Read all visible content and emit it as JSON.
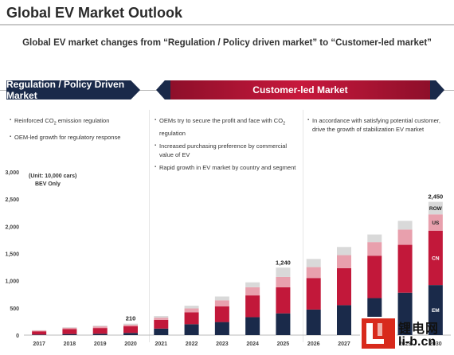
{
  "page": {
    "title": "Global EV Market Outlook",
    "subtitle": "Global EV market changes from “Regulation / Policy driven market” to “Customer-led market”"
  },
  "phases": {
    "left_banner": "Regulation / Policy Driven Market",
    "right_banner": "Customer-led Market"
  },
  "bullets": {
    "left": [
      "Reinforced CO",
      "emission regulation",
      "OEM-led growth for regulatory response"
    ],
    "middle": [
      "OEMs try to secure the profit and face with CO",
      " regulation",
      "Increased purchasing preference by commercial value of EV",
      "Rapid growth in EV market by country and segment"
    ],
    "right": [
      "In accordance with satisfying potential customer, drive the growth of stabilization EV market"
    ]
  },
  "unit_note": [
    "(Unit: 10,000 cars)",
    "BEV Only"
  ],
  "logo": {
    "line1": "锂电网",
    "line2": "li-b.cn"
  },
  "colors": {
    "navy": "#1a2a4a",
    "crimson": "#c2183a",
    "pink": "#e8a0ad",
    "light_pink": "#f2c9d1",
    "grey": "#d9d9d9"
  },
  "chart_data": {
    "type": "bar",
    "stacked": true,
    "categories": [
      "2017",
      "2018",
      "2019",
      "2020",
      "2021",
      "2022",
      "2023",
      "2024",
      "2025",
      "2026",
      "2027",
      "2028",
      "2029",
      "2030"
    ],
    "ylim": [
      0,
      3000
    ],
    "yticks": [
      "0",
      "500",
      "1,000",
      "1,500",
      "2,000",
      "2,500",
      "3,000"
    ],
    "ytick_values": [
      0,
      500,
      1000,
      1500,
      2000,
      2500,
      3000
    ],
    "series": [
      {
        "name": "EM",
        "color": "#1a2a4a",
        "values": [
          10,
          20,
          25,
          40,
          120,
          200,
          240,
          330,
          400,
          470,
          550,
          680,
          780,
          920
        ]
      },
      {
        "name": "CN",
        "color": "#c2183a",
        "values": [
          60,
          90,
          105,
          125,
          160,
          220,
          290,
          400,
          480,
          580,
          680,
          780,
          880,
          1000
        ]
      },
      {
        "name": "US",
        "color": "#e8a0ad",
        "values": [
          15,
          25,
          30,
          25,
          40,
          70,
          110,
          150,
          190,
          200,
          240,
          250,
          280,
          300
        ]
      },
      {
        "name": "ROW",
        "color": "#d9d9d9",
        "values": [
          5,
          10,
          15,
          20,
          30,
          50,
          70,
          90,
          170,
          150,
          150,
          140,
          160,
          230
        ]
      }
    ],
    "totals_shown": [
      {
        "index": 3,
        "label": "210"
      },
      {
        "index": 8,
        "label": "1,240"
      },
      {
        "index": 13,
        "label": "2,450"
      }
    ],
    "segment_labels": [
      "ROW",
      "US",
      "CN",
      "EM"
    ]
  }
}
